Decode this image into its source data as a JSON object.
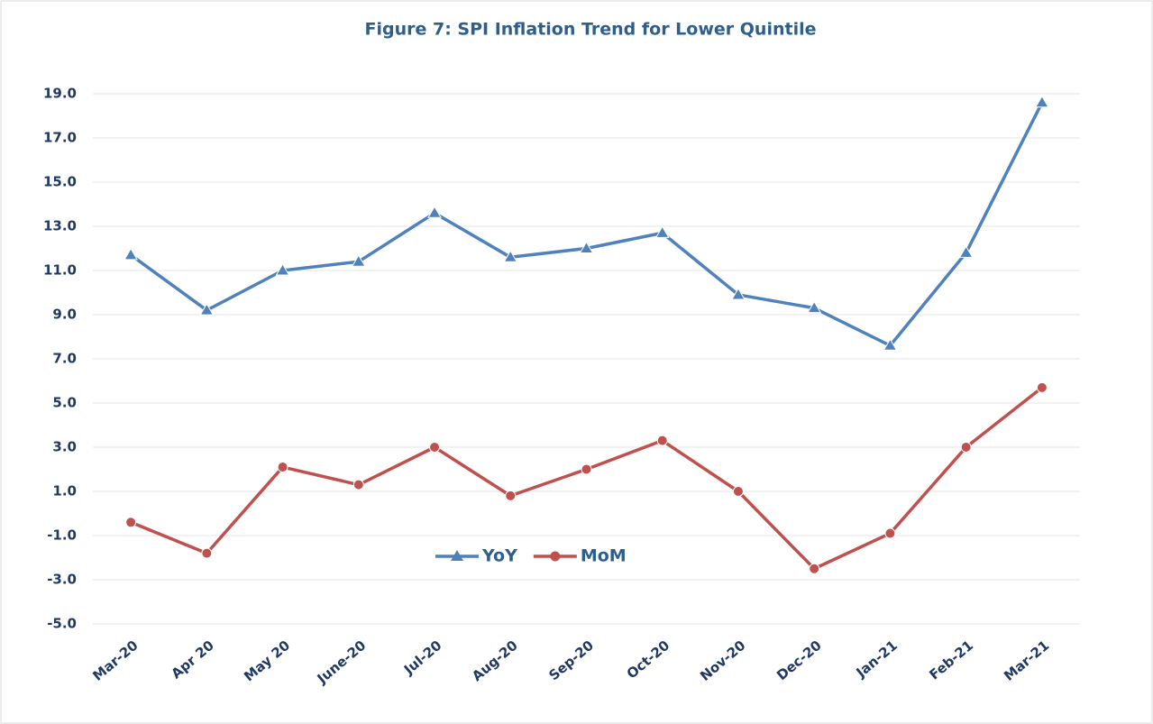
{
  "chart_data": {
    "type": "line",
    "title": "Figure 7: SPI Inflation Trend for Lower Quintile",
    "categories": [
      "Mar-20",
      "Apr 20",
      "May 20",
      "June-20",
      "Jul-20",
      "Aug-20",
      "Sep-20",
      "Oct-20",
      "Nov-20",
      "Dec-20",
      "Jan-21",
      "Feb-21",
      "Mar-21"
    ],
    "series": [
      {
        "name": "YoY",
        "color": "#4f81bd",
        "marker": "triangle",
        "values": [
          11.7,
          9.2,
          11.0,
          11.4,
          13.6,
          11.6,
          12.0,
          12.7,
          9.9,
          9.3,
          7.6,
          11.8,
          18.6
        ]
      },
      {
        "name": "MoM",
        "color": "#c0504d",
        "marker": "circle",
        "values": [
          -0.4,
          -1.8,
          2.1,
          1.3,
          3.0,
          0.8,
          2.0,
          3.3,
          1.0,
          -2.5,
          -0.9,
          3.0,
          5.7
        ]
      }
    ],
    "ylim": [
      -5,
      19
    ],
    "yticks": [
      {
        "value": -5,
        "label": "-5.0"
      },
      {
        "value": -3,
        "label": "-3.0"
      },
      {
        "value": -1,
        "label": "-1.0"
      },
      {
        "value": 1,
        "label": "1.0"
      },
      {
        "value": 3,
        "label": "3.0"
      },
      {
        "value": 5,
        "label": "5.0"
      },
      {
        "value": 7,
        "label": "7.0"
      },
      {
        "value": 9,
        "label": "9.0"
      },
      {
        "value": 11,
        "label": "11.0"
      },
      {
        "value": 13,
        "label": "13.0"
      },
      {
        "value": 15,
        "label": "15.0"
      },
      {
        "value": 17,
        "label": "17.0"
      },
      {
        "value": 19,
        "label": "19.0"
      }
    ],
    "grid": true
  }
}
